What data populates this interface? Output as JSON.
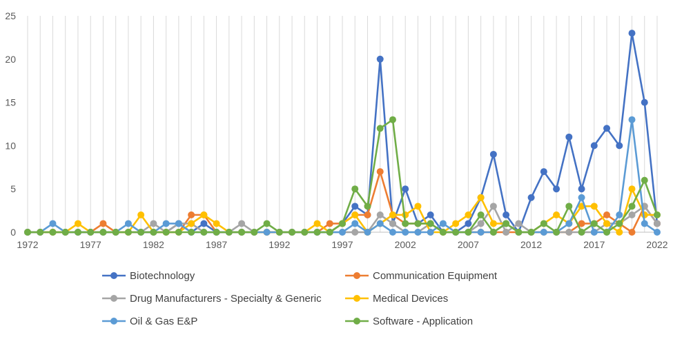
{
  "chart_data": {
    "type": "line",
    "title": "",
    "xlabel": "",
    "ylabel": "",
    "ylim": [
      0,
      25
    ],
    "yticks": [
      "0",
      "5",
      "10",
      "15",
      "20",
      "25"
    ],
    "xlim": [
      1972,
      2022
    ],
    "xticks": [
      "1972",
      "1977",
      "1982",
      "1987",
      "1992",
      "1997",
      "2002",
      "2007",
      "2012",
      "2017",
      "2022"
    ],
    "grid": "vertical",
    "legend_position": "bottom",
    "x": [
      1972,
      1973,
      1974,
      1975,
      1976,
      1977,
      1978,
      1979,
      1980,
      1981,
      1982,
      1983,
      1984,
      1985,
      1986,
      1987,
      1988,
      1989,
      1990,
      1991,
      1992,
      1993,
      1994,
      1995,
      1996,
      1997,
      1998,
      1999,
      2000,
      2001,
      2002,
      2003,
      2004,
      2005,
      2006,
      2007,
      2008,
      2009,
      2010,
      2011,
      2012,
      2013,
      2014,
      2015,
      2016,
      2017,
      2018,
      2019,
      2020,
      2021,
      2022
    ],
    "series": [
      {
        "name": "Biotechnology",
        "color": "#4472C4",
        "values": [
          0,
          0,
          0,
          0,
          0,
          0,
          0,
          0,
          0,
          0,
          0,
          0,
          1,
          0,
          1,
          0,
          0,
          0,
          0,
          0,
          0,
          0,
          0,
          0,
          0,
          1,
          3,
          2,
          20,
          1,
          5,
          1,
          2,
          0,
          0,
          1,
          4,
          9,
          2,
          0,
          4,
          7,
          5,
          11,
          5,
          10,
          12,
          10,
          23,
          15,
          1
        ]
      },
      {
        "name": "Communication Equipment",
        "color": "#ED7D31",
        "values": [
          0,
          0,
          0,
          0,
          0,
          0,
          1,
          0,
          0,
          0,
          0,
          0,
          0,
          2,
          2,
          0,
          0,
          0,
          0,
          0,
          0,
          0,
          0,
          0,
          1,
          1,
          2,
          2,
          7,
          2,
          1,
          1,
          1,
          0,
          0,
          0,
          0,
          0,
          0,
          0,
          0,
          0,
          0,
          0,
          1,
          1,
          2,
          1,
          0,
          3,
          1
        ]
      },
      {
        "name": "Drug Manufacturers - Specialty & Generic",
        "color": "#A5A5A5",
        "values": [
          0,
          0,
          0,
          0,
          0,
          0,
          0,
          0,
          0,
          0,
          1,
          0,
          1,
          1,
          0,
          0,
          0,
          1,
          0,
          0,
          0,
          0,
          0,
          0,
          0,
          0,
          0,
          0,
          2,
          1,
          0,
          0,
          1,
          0,
          0,
          0,
          1,
          3,
          0,
          1,
          0,
          0,
          0,
          0,
          0,
          0,
          1,
          1,
          2,
          3,
          1
        ]
      },
      {
        "name": "Medical Devices",
        "color": "#FFC000",
        "values": [
          0,
          0,
          0,
          0,
          1,
          0,
          0,
          0,
          0,
          2,
          0,
          0,
          0,
          1,
          2,
          1,
          0,
          0,
          0,
          0,
          0,
          0,
          0,
          1,
          0,
          1,
          2,
          0,
          1,
          2,
          2,
          3,
          0,
          0,
          1,
          2,
          4,
          1,
          1,
          0,
          0,
          1,
          2,
          1,
          3,
          3,
          1,
          0,
          5,
          2,
          2
        ]
      },
      {
        "name": "Oil & Gas E&P",
        "color": "#5B9BD5",
        "values": [
          0,
          0,
          1,
          0,
          0,
          0,
          0,
          0,
          1,
          0,
          0,
          1,
          1,
          0,
          0,
          0,
          0,
          0,
          0,
          0,
          0,
          0,
          0,
          0,
          0,
          0,
          1,
          0,
          1,
          0,
          0,
          0,
          0,
          1,
          0,
          0,
          0,
          0,
          1,
          0,
          0,
          0,
          0,
          1,
          4,
          0,
          0,
          2,
          13,
          1,
          0
        ]
      },
      {
        "name": "Software - Application",
        "color": "#70AD47",
        "values": [
          0,
          0,
          0,
          0,
          0,
          0,
          0,
          0,
          0,
          0,
          0,
          0,
          0,
          0,
          0,
          0,
          0,
          0,
          0,
          1,
          0,
          0,
          0,
          0,
          0,
          1,
          5,
          3,
          12,
          13,
          1,
          1,
          1,
          0,
          0,
          0,
          2,
          0,
          1,
          0,
          0,
          1,
          0,
          3,
          0,
          1,
          0,
          1,
          3,
          6,
          2
        ]
      }
    ]
  }
}
